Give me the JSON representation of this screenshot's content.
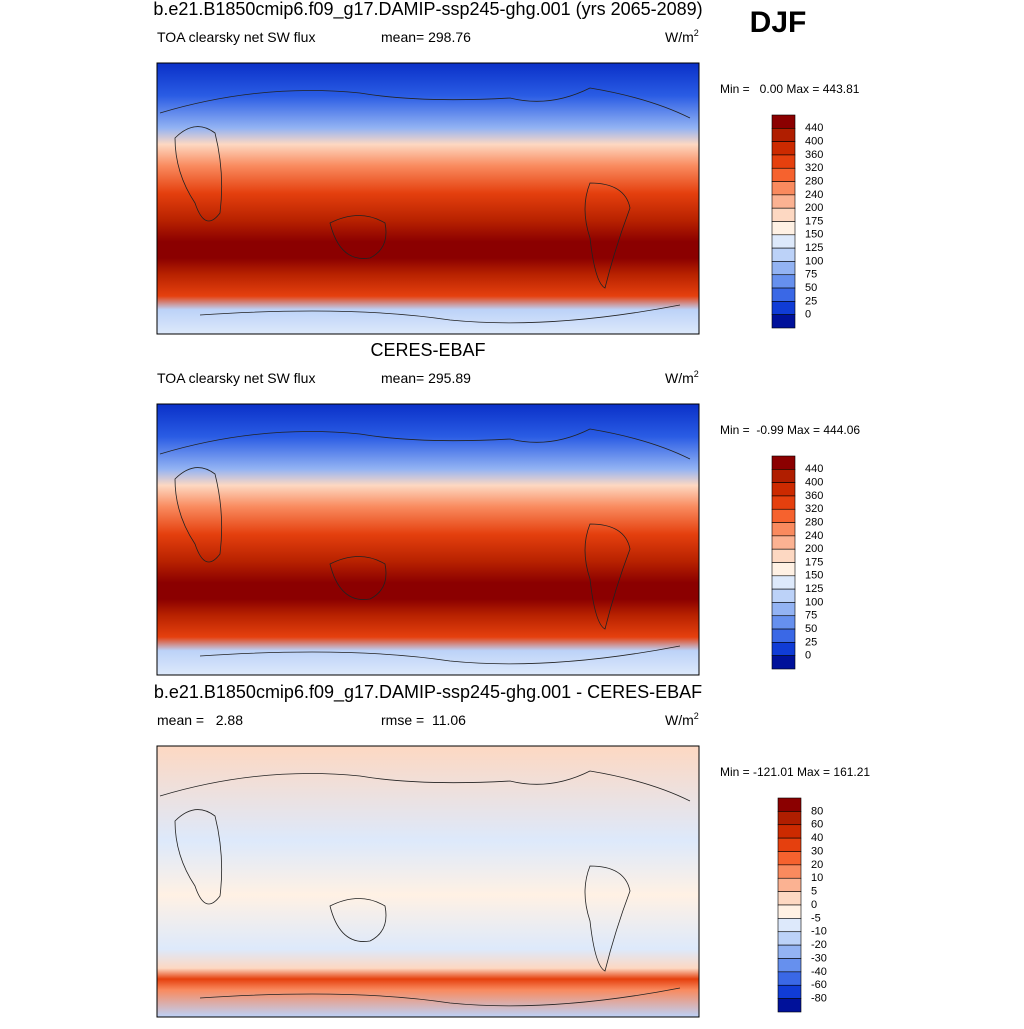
{
  "season": "DJF",
  "panels": [
    {
      "title": "b.e21.B1850cmip6.f09_g17.DAMIP-ssp245-ghg.001 (yrs 2065-2089)",
      "left_label": "TOA clearsky net SW flux",
      "center_label": "mean= 298.76",
      "units": "W/m",
      "units_sup": "2",
      "minmax": "Min =   0.00 Max = 443.81",
      "colorbar": {
        "labels": [
          "440",
          "400",
          "360",
          "320",
          "280",
          "240",
          "200",
          "175",
          "150",
          "125",
          "100",
          "75",
          "50",
          "25",
          "0"
        ],
        "colors": [
          "#8b0000",
          "#b01e00",
          "#cc2a00",
          "#e5400e",
          "#f6622e",
          "#f98a5e",
          "#fbb292",
          "#fdd8c2",
          "#fff1e4",
          "#dde9fb",
          "#bcd2f8",
          "#93b3f3",
          "#6690ee",
          "#3a68e6",
          "#103cd6",
          "#00119a"
        ]
      }
    },
    {
      "title": "CERES-EBAF",
      "left_label": "TOA clearsky net SW flux",
      "center_label": "mean= 295.89",
      "units": "W/m",
      "units_sup": "2",
      "minmax": "Min =  -0.99 Max = 444.06",
      "colorbar": {
        "labels": [
          "440",
          "400",
          "360",
          "320",
          "280",
          "240",
          "200",
          "175",
          "150",
          "125",
          "100",
          "75",
          "50",
          "25",
          "0"
        ],
        "colors": [
          "#8b0000",
          "#b01e00",
          "#cc2a00",
          "#e5400e",
          "#f6622e",
          "#f98a5e",
          "#fbb292",
          "#fdd8c2",
          "#fff1e4",
          "#dde9fb",
          "#bcd2f8",
          "#93b3f3",
          "#6690ee",
          "#3a68e6",
          "#103cd6",
          "#00119a"
        ]
      }
    },
    {
      "title": "b.e21.B1850cmip6.f09_g17.DAMIP-ssp245-ghg.001 - CERES-EBAF",
      "left_label": "mean =   2.88",
      "center_label": "rmse =  11.06",
      "units": "W/m",
      "units_sup": "2",
      "minmax": "Min = -121.01 Max = 161.21",
      "colorbar": {
        "labels": [
          "80",
          "60",
          "40",
          "30",
          "20",
          "10",
          "5",
          "0",
          "-5",
          "-10",
          "-20",
          "-30",
          "-40",
          "-60",
          "-80"
        ],
        "colors": [
          "#8b0000",
          "#b01e00",
          "#cc2a00",
          "#e5400e",
          "#f6622e",
          "#f98a5e",
          "#fbb292",
          "#fdd8c2",
          "#fff1e4",
          "#dde9fb",
          "#bcd2f8",
          "#93b3f3",
          "#6690ee",
          "#3a68e6",
          "#103cd6",
          "#00119a"
        ]
      }
    }
  ]
}
